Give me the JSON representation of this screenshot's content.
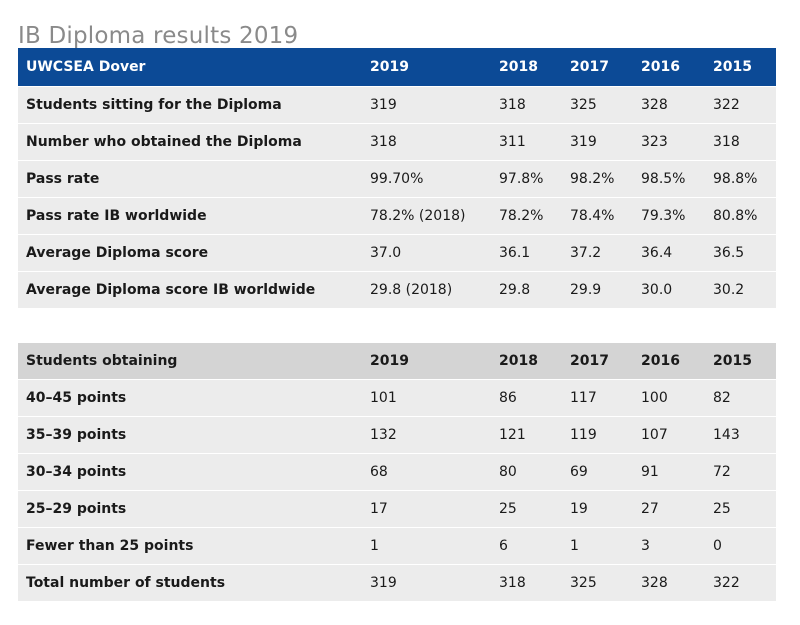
{
  "page": {
    "title": "IB Diploma results 2019"
  },
  "table1": {
    "header": [
      "UWCSEA Dover",
      "2019",
      "2018",
      "2017",
      "2016",
      "2015"
    ],
    "rows": [
      [
        "Students sitting for the Diploma",
        "319",
        "318",
        "325",
        "328",
        "322"
      ],
      [
        "Number who obtained the Diploma",
        "318",
        "311",
        "319",
        "323",
        "318"
      ],
      [
        "Pass rate",
        "99.70%",
        "97.8%",
        "98.2%",
        "98.5%",
        "98.8%"
      ],
      [
        "Pass rate IB worldwide",
        "78.2% (2018)",
        "78.2%",
        "78.4%",
        "79.3%",
        "80.8%"
      ],
      [
        "Average Diploma score",
        "37.0",
        "36.1",
        "37.2",
        "36.4",
        "36.5"
      ],
      [
        "Average Diploma score IB worldwide",
        "29.8 (2018)",
        "29.8",
        "29.9",
        "30.0",
        "30.2"
      ]
    ]
  },
  "table2": {
    "header": [
      "Students obtaining",
      "2019",
      "2018",
      "2017",
      "2016",
      "2015"
    ],
    "rows": [
      [
        "40–45 points",
        "101",
        "86",
        "117",
        "100",
        "82"
      ],
      [
        "35–39 points",
        "132",
        "121",
        "119",
        "107",
        "143"
      ],
      [
        "30–34 points",
        "68",
        "80",
        "69",
        "91",
        "72"
      ],
      [
        "25–29 points",
        "17",
        "25",
        "19",
        "27",
        "25"
      ],
      [
        "Fewer than 25 points",
        "1",
        "6",
        "1",
        "3",
        "0"
      ],
      [
        "Total number of students",
        "319",
        "318",
        "325",
        "328",
        "322"
      ]
    ]
  }
}
